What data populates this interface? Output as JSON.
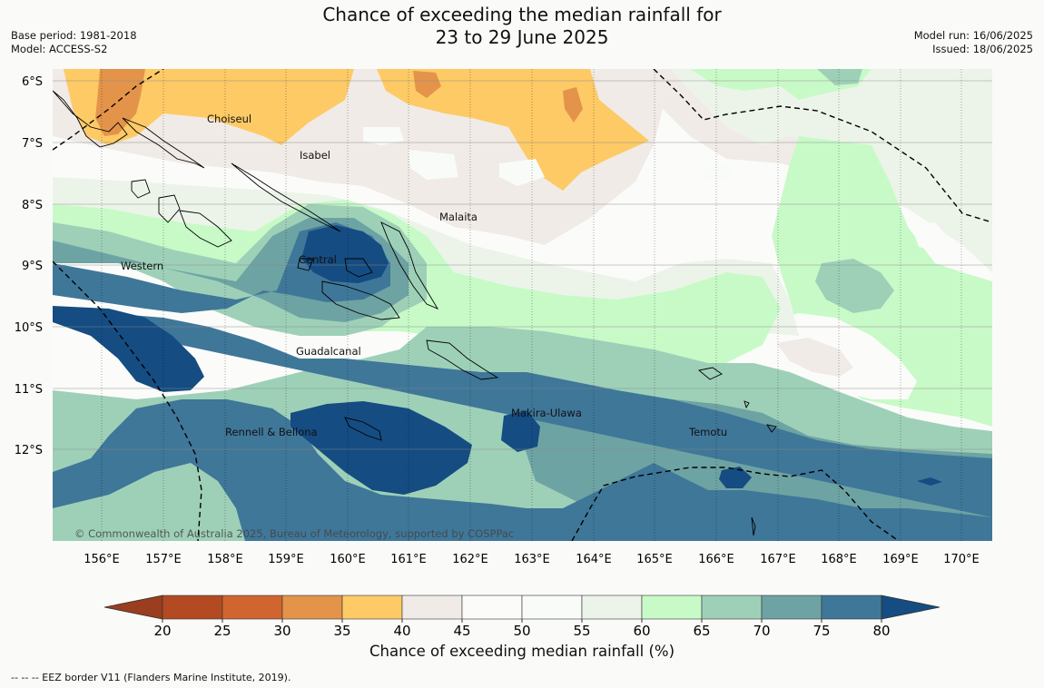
{
  "title": {
    "line1": "Chance of exceeding the median rainfall for",
    "line2": "23 to 29 June 2025"
  },
  "meta_left": {
    "base_period": "Base period: 1981-2018",
    "model": "Model: ACCESS-S2"
  },
  "meta_right": {
    "model_run": "Model run: 16/06/2025",
    "issued": "Issued: 18/06/2025"
  },
  "map": {
    "latitude_labels": [
      "6°S",
      "7°S",
      "8°S",
      "9°S",
      "10°S",
      "11°S",
      "12°S"
    ],
    "longitude_labels": [
      "156°E",
      "157°E",
      "158°E",
      "159°E",
      "160°E",
      "161°E",
      "162°E",
      "163°E",
      "164°E",
      "165°E",
      "166°E",
      "167°E",
      "168°E",
      "169°E",
      "170°E"
    ],
    "regions": [
      "Choiseul",
      "Isabel",
      "Malaita",
      "Central",
      "Western",
      "Guadalcanal",
      "Makira-Ulawa",
      "Rennell & Bellona",
      "Temotu"
    ],
    "copyright": "© Commonwealth of Australia 2025, Bureau of Meteorology, supported by COSPPac"
  },
  "legend": {
    "ticks": [
      "20",
      "25",
      "30",
      "35",
      "40",
      "45",
      "50",
      "55",
      "60",
      "65",
      "70",
      "75",
      "80"
    ],
    "colors": [
      "#b34a22",
      "#d06530",
      "#e3944a",
      "#fdca66",
      "#f0ebe6",
      "#fbfcfa",
      "#f9fbf8",
      "#ecf4ea",
      "#c8fac8",
      "#9ed0b8",
      "#6ea3a3",
      "#3f7799"
    ],
    "under_color": "#9b3d1f",
    "over_color": "#154c82",
    "title": "Chance of exceeding median rainfall (%)"
  },
  "footnote": "--  --  -- EEZ border V11 (Flanders Marine Institute, 2019)."
}
